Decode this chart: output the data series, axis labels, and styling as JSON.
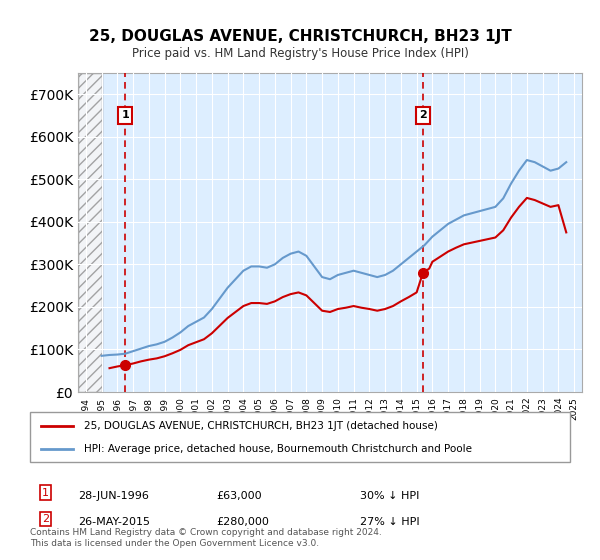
{
  "title": "25, DOUGLAS AVENUE, CHRISTCHURCH, BH23 1JT",
  "subtitle": "Price paid vs. HM Land Registry's House Price Index (HPI)",
  "legend_line1": "25, DOUGLAS AVENUE, CHRISTCHURCH, BH23 1JT (detached house)",
  "legend_line2": "HPI: Average price, detached house, Bournemouth Christchurch and Poole",
  "marker1_label": "1",
  "marker1_date": "28-JUN-1996",
  "marker1_price": "£63,000",
  "marker1_hpi": "30% ↓ HPI",
  "marker2_label": "2",
  "marker2_date": "26-MAY-2015",
  "marker2_price": "£280,000",
  "marker2_hpi": "27% ↓ HPI",
  "footer": "Contains HM Land Registry data © Crown copyright and database right 2024.\nThis data is licensed under the Open Government Licence v3.0.",
  "red_color": "#cc0000",
  "blue_color": "#6699cc",
  "hatch_end_year": 1995.0,
  "marker1_x": 1996.49,
  "marker2_x": 2015.4,
  "ylim_max": 750000,
  "yticks": [
    0,
    100000,
    200000,
    300000,
    400000,
    500000,
    600000,
    700000
  ],
  "xlim_min": 1993.5,
  "xlim_max": 2025.5
}
